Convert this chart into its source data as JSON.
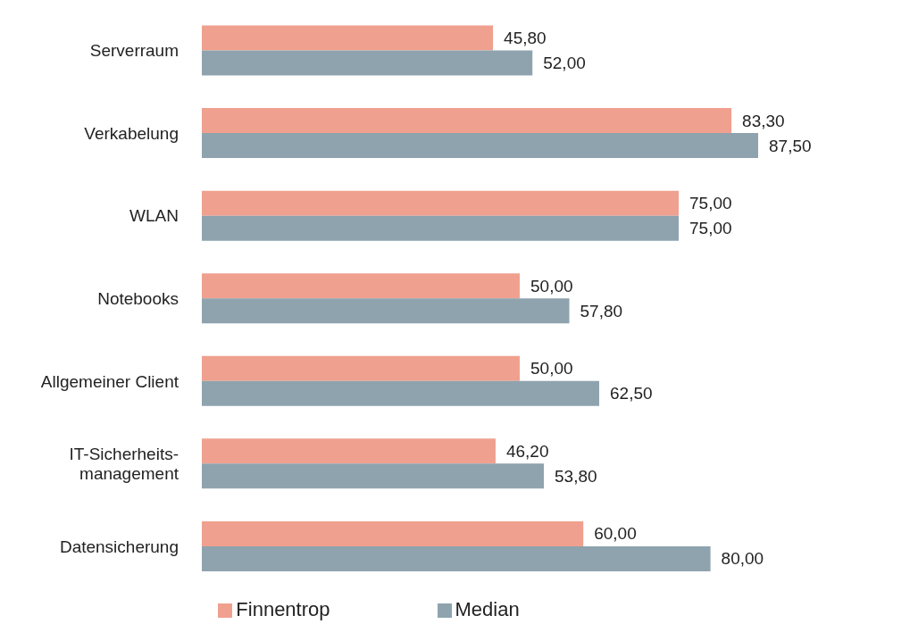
{
  "chart_data": {
    "type": "bar",
    "orientation": "horizontal",
    "categories": [
      "Serverraum",
      "Verkabelung",
      "WLAN",
      "Notebooks",
      "Allgemeiner Client",
      "IT-Sicherheits-management",
      "Datensicherung"
    ],
    "series": [
      {
        "name": "Finnentrop",
        "color": "#f0a08f",
        "values": [
          45.8,
          83.3,
          75.0,
          50.0,
          50.0,
          46.2,
          60.0
        ],
        "value_labels": [
          "45,80",
          "83,30",
          "75,00",
          "50,00",
          "50,00",
          "46,20",
          "60,00"
        ]
      },
      {
        "name": "Median",
        "color": "#8ea3ae",
        "values": [
          52.0,
          87.5,
          75.0,
          57.8,
          62.5,
          53.8,
          80.0
        ],
        "value_labels": [
          "52,00",
          "87,50",
          "75,00",
          "57,80",
          "62,50",
          "53,80",
          "80,00"
        ]
      }
    ],
    "legend": "bottom",
    "grid": false
  }
}
